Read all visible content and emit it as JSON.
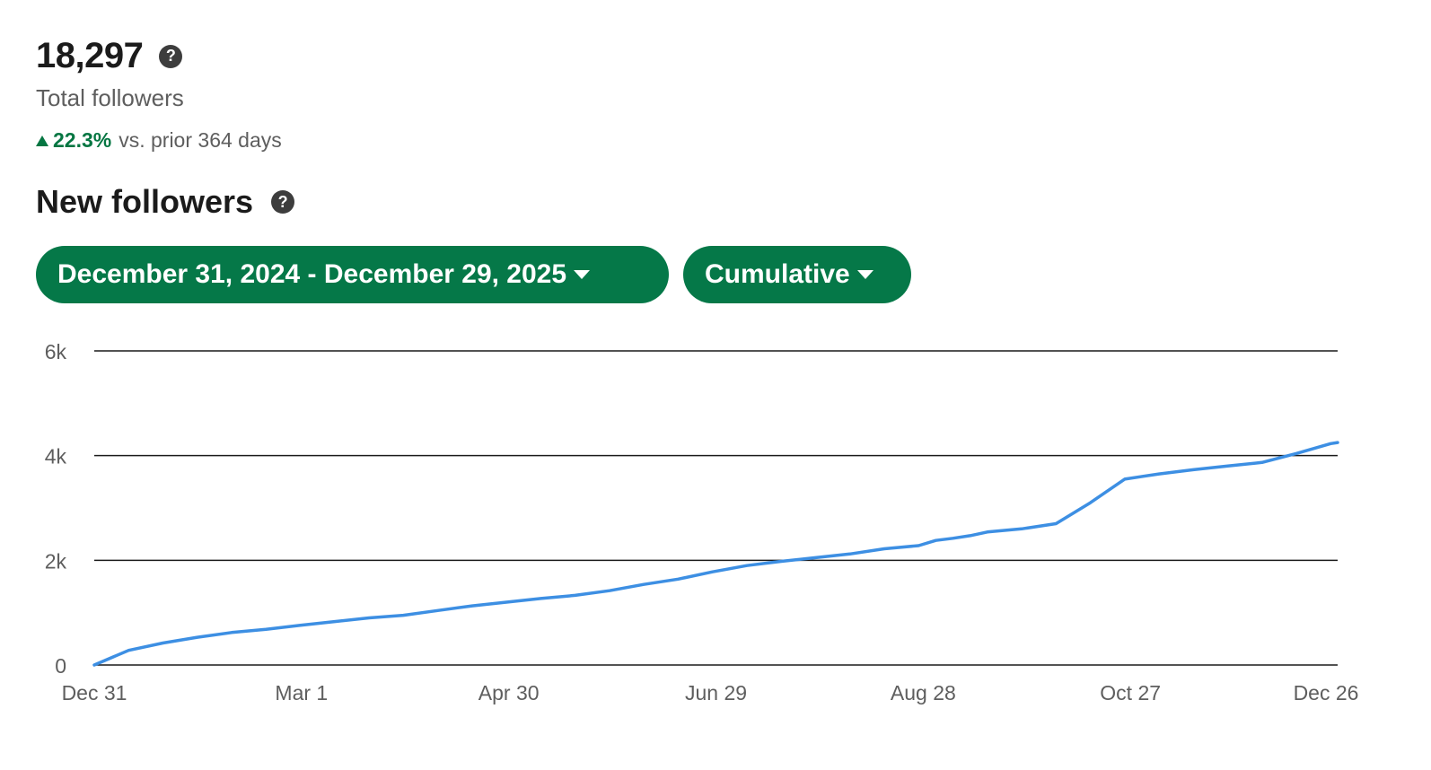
{
  "summary": {
    "total_value": "18,297",
    "total_label": "Total followers",
    "change_pct": "22.3%",
    "change_text": "vs. prior 364 days",
    "change_color": "#057642",
    "help_icon": "question-circle-icon"
  },
  "section": {
    "title": "New followers"
  },
  "filters": {
    "date_range": "December 31, 2024 - December 29, 2025",
    "mode": "Cumulative",
    "pill_color": "#057848"
  },
  "chart_data": {
    "type": "line",
    "title": "",
    "xlabel": "",
    "ylabel": "",
    "y_ticks": [
      "0",
      "2k",
      "4k",
      "6k"
    ],
    "ylim": [
      0,
      6000
    ],
    "x_ticks": [
      "Dec 31",
      "Mar 1",
      "Apr 30",
      "Jun 29",
      "Aug 28",
      "Oct 27",
      "Dec 26"
    ],
    "grid": true,
    "line_color": "#3d8fe3",
    "series": [
      {
        "x_day": [
          0,
          10,
          20,
          30,
          40,
          50,
          60,
          70,
          80,
          90,
          100,
          110,
          120,
          130,
          140,
          150,
          160,
          170,
          180,
          190,
          200,
          210,
          220,
          230,
          240,
          245,
          250,
          255,
          260,
          270,
          280,
          290,
          300,
          310,
          320,
          330,
          340,
          350,
          360,
          362
        ],
        "values": [
          0,
          280,
          420,
          530,
          620,
          680,
          760,
          830,
          900,
          950,
          1040,
          1130,
          1200,
          1270,
          1330,
          1420,
          1540,
          1640,
          1780,
          1900,
          1980,
          2050,
          2120,
          2220,
          2280,
          2380,
          2420,
          2470,
          2540,
          2600,
          2700,
          3100,
          3550,
          3650,
          3730,
          3800,
          3870,
          4040,
          4230,
          4250
        ]
      }
    ]
  }
}
